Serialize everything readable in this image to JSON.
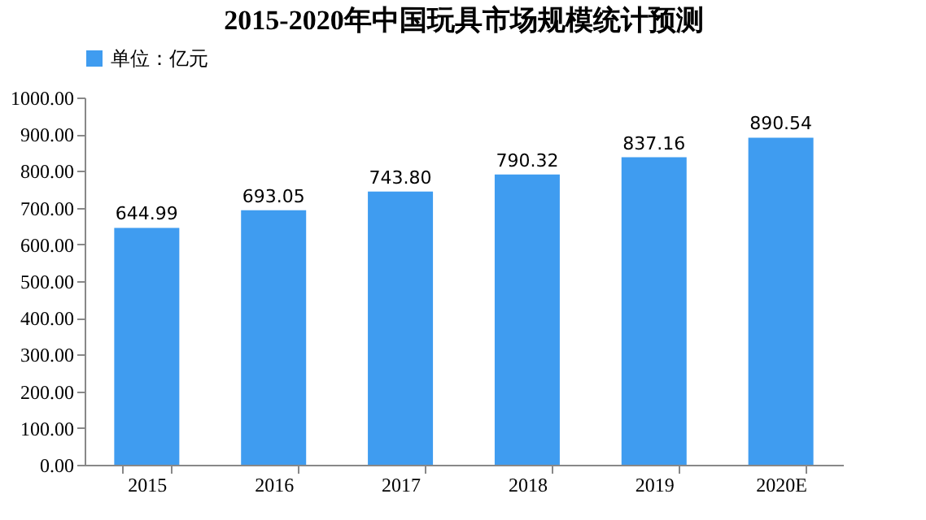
{
  "chart_data": {
    "type": "bar",
    "title": "2015-2020年中国玩具市场规模统计预测",
    "categories": [
      "2015",
      "2016",
      "2017",
      "2018",
      "2019",
      "2020E"
    ],
    "series": [
      {
        "name": "单位：亿元",
        "color": "#3f9cf0",
        "values": [
          644.99,
          693.05,
          743.8,
          790.32,
          837.16,
          890.54
        ]
      }
    ],
    "value_labels": [
      "644.99",
      "693.05",
      "743.80",
      "790.32",
      "837.16",
      "890.54"
    ],
    "ylim": [
      0,
      1000
    ],
    "yticks": [
      {
        "value": 0,
        "label": "0.00"
      },
      {
        "value": 100,
        "label": "100.00"
      },
      {
        "value": 200,
        "label": "200.00"
      },
      {
        "value": 300,
        "label": "300.00"
      },
      {
        "value": 400,
        "label": "400.00"
      },
      {
        "value": 500,
        "label": "500.00"
      },
      {
        "value": 600,
        "label": "600.00"
      },
      {
        "value": 700,
        "label": "700.00"
      },
      {
        "value": 800,
        "label": "800.00"
      },
      {
        "value": 900,
        "label": "900.00"
      },
      {
        "value": 1000,
        "label": "1000.00"
      }
    ],
    "legend": "top",
    "grid": false
  }
}
